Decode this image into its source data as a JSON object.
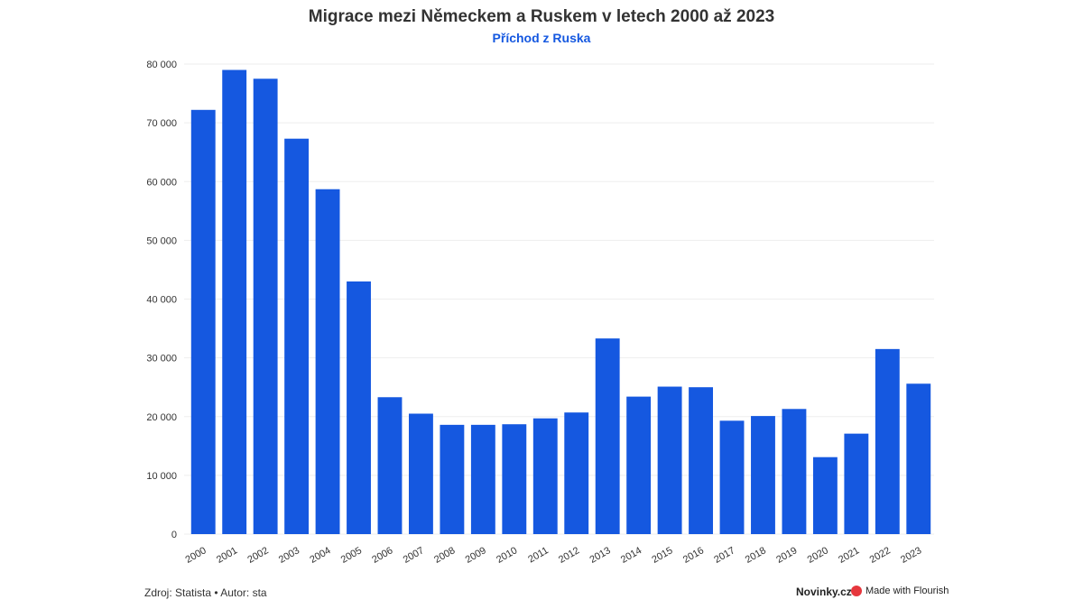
{
  "header": {
    "title": "Migrace mezi Německem a Ruskem v letech 2000 až 2023",
    "subtitle": "Příchod z Ruska"
  },
  "footer": {
    "source": "Zdroj: Statista • Autor: sta",
    "brand": "Novinky.cz",
    "flourish": "Made with Flourish"
  },
  "colors": {
    "bar": "#1558e0",
    "subtitle": "#1558e0",
    "grid": "#eeeeee"
  },
  "chart_data": {
    "type": "bar",
    "title": "Migrace mezi Německem a Ruskem v letech 2000 až 2023",
    "subtitle": "Příchod z Ruska",
    "xlabel": "",
    "ylabel": "",
    "categories": [
      "2000",
      "2001",
      "2002",
      "2003",
      "2004",
      "2005",
      "2006",
      "2007",
      "2008",
      "2009",
      "2010",
      "2011",
      "2012",
      "2013",
      "2014",
      "2015",
      "2016",
      "2017",
      "2018",
      "2019",
      "2020",
      "2021",
      "2022",
      "2023"
    ],
    "values": [
      72200,
      79000,
      77500,
      67300,
      58700,
      43000,
      23300,
      20500,
      18600,
      18600,
      18700,
      19700,
      20700,
      33300,
      23400,
      25100,
      25000,
      19300,
      20100,
      21300,
      13100,
      17100,
      31500,
      25600
    ],
    "ylim": [
      0,
      80000
    ],
    "yticks": [
      0,
      10000,
      20000,
      30000,
      40000,
      50000,
      60000,
      70000,
      80000
    ],
    "ytick_labels": [
      "0",
      "10 000",
      "20 000",
      "30 000",
      "40 000",
      "50 000",
      "60 000",
      "70 000",
      "80 000"
    ],
    "grid": true,
    "legend": "none"
  }
}
